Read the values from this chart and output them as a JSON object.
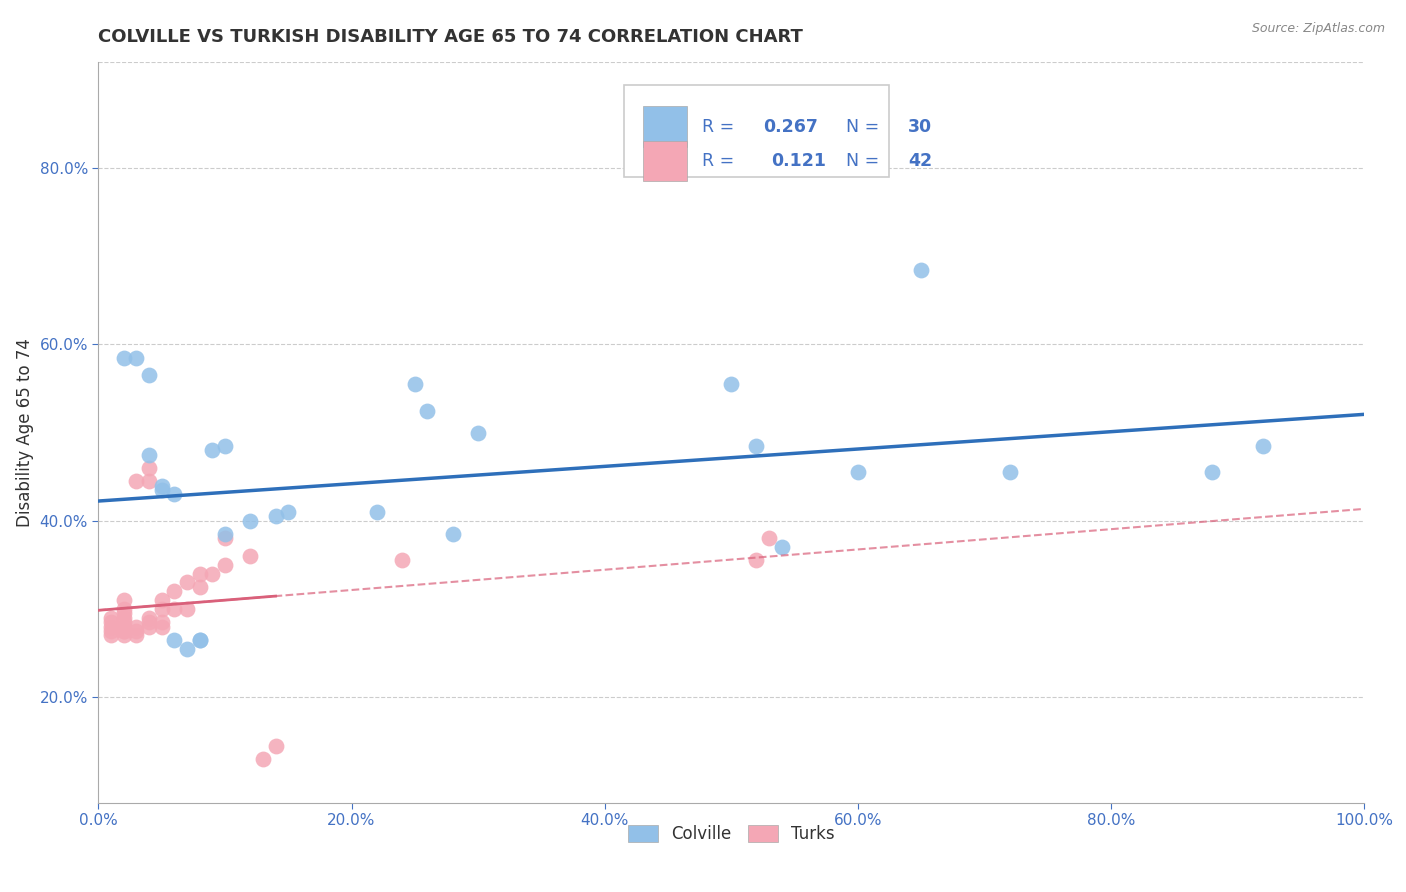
{
  "title": "COLVILLE VS TURKISH DISABILITY AGE 65 TO 74 CORRELATION CHART",
  "source": "Source: ZipAtlas.com",
  "ylabel": "Disability Age 65 to 74",
  "xlabel": "",
  "xlim": [
    0.0,
    1.0
  ],
  "ylim": [
    0.08,
    0.92
  ],
  "xticks": [
    0.0,
    0.2,
    0.4,
    0.6,
    0.8,
    1.0
  ],
  "xticklabels": [
    "0.0%",
    "20.0%",
    "40.0%",
    "60.0%",
    "80.0%",
    "100.0%"
  ],
  "yticks": [
    0.2,
    0.4,
    0.6,
    0.8
  ],
  "yticklabels": [
    "20.0%",
    "40.0%",
    "60.0%",
    "80.0%"
  ],
  "colville_R": 0.267,
  "colville_N": 30,
  "turks_R": 0.121,
  "turks_N": 42,
  "colville_color": "#92c0e8",
  "turks_color": "#f4a7b5",
  "colville_line_color": "#2e6fba",
  "turks_line_color": "#d9607a",
  "text_color": "#4472c4",
  "grid_color": "#cccccc",
  "background_color": "#ffffff",
  "colville_x": [
    0.02,
    0.03,
    0.04,
    0.05,
    0.05,
    0.06,
    0.06,
    0.07,
    0.08,
    0.09,
    0.1,
    0.1,
    0.12,
    0.14,
    0.22,
    0.26,
    0.28,
    0.3,
    0.5,
    0.52,
    0.54,
    0.6,
    0.65,
    0.72,
    0.88,
    0.92,
    0.04,
    0.08,
    0.15,
    0.25
  ],
  "colville_y": [
    0.585,
    0.585,
    0.565,
    0.44,
    0.435,
    0.43,
    0.265,
    0.255,
    0.265,
    0.48,
    0.485,
    0.385,
    0.4,
    0.405,
    0.41,
    0.525,
    0.385,
    0.5,
    0.555,
    0.485,
    0.37,
    0.455,
    0.685,
    0.455,
    0.455,
    0.485,
    0.475,
    0.265,
    0.41,
    0.555
  ],
  "turks_x": [
    0.01,
    0.01,
    0.01,
    0.01,
    0.01,
    0.02,
    0.02,
    0.02,
    0.02,
    0.02,
    0.02,
    0.02,
    0.02,
    0.02,
    0.03,
    0.03,
    0.03,
    0.03,
    0.04,
    0.04,
    0.04,
    0.04,
    0.04,
    0.05,
    0.05,
    0.05,
    0.05,
    0.06,
    0.06,
    0.07,
    0.07,
    0.08,
    0.08,
    0.09,
    0.1,
    0.1,
    0.12,
    0.13,
    0.14,
    0.24,
    0.52,
    0.53
  ],
  "turks_y": [
    0.27,
    0.275,
    0.28,
    0.285,
    0.29,
    0.27,
    0.275,
    0.275,
    0.28,
    0.285,
    0.29,
    0.295,
    0.3,
    0.31,
    0.27,
    0.275,
    0.28,
    0.445,
    0.28,
    0.285,
    0.29,
    0.445,
    0.46,
    0.28,
    0.285,
    0.3,
    0.31,
    0.3,
    0.32,
    0.3,
    0.33,
    0.325,
    0.34,
    0.34,
    0.35,
    0.38,
    0.36,
    0.13,
    0.145,
    0.355,
    0.355,
    0.38
  ]
}
